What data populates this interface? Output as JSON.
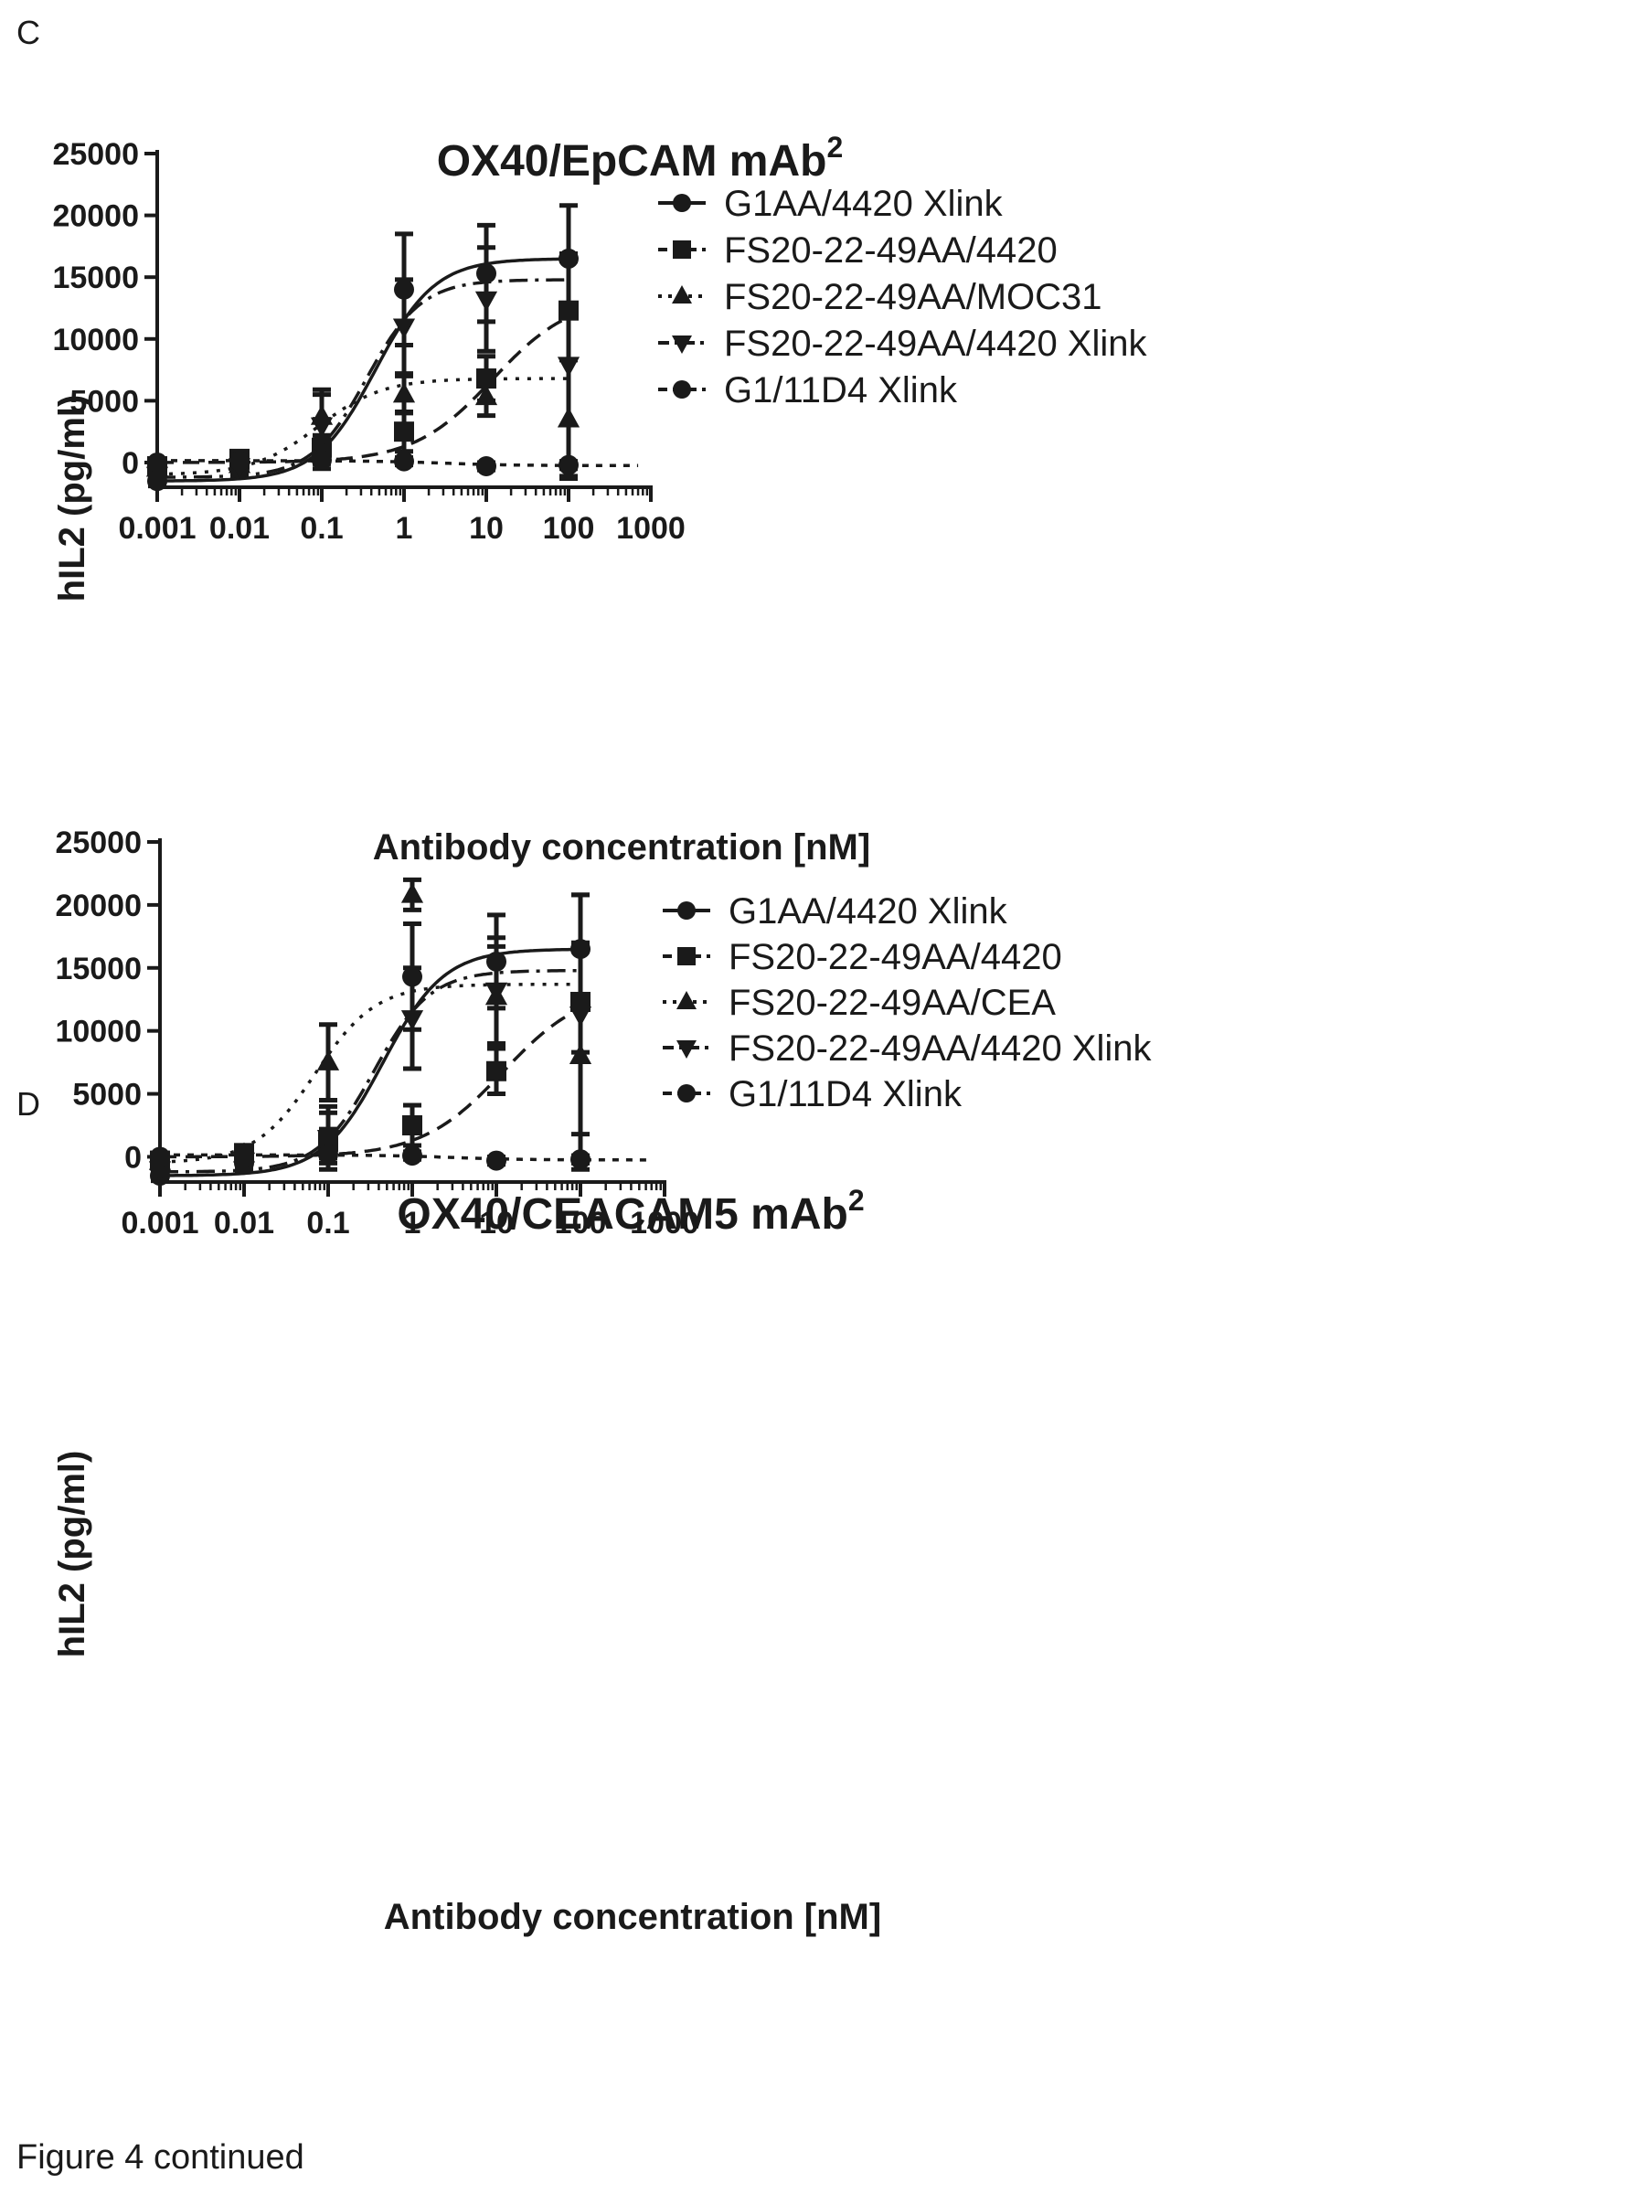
{
  "caption": "Figure 4 continued",
  "chart_data": [
    {
      "panel": "C",
      "type": "line",
      "title": "OX40/EpCAM mAb",
      "title_sup": "2",
      "xlabel": "Antibody concentration [nM]",
      "ylabel": "hIL2 (pg/ml)",
      "x_scale": "log",
      "xlim": [
        0.001,
        1000
      ],
      "ylim": [
        -2000,
        25000
      ],
      "x_ticks": [
        0.001,
        0.01,
        0.1,
        1,
        10,
        100,
        1000
      ],
      "x_tick_labels": [
        "0.001",
        "0.01",
        "0.1",
        "1",
        "10",
        "100",
        "1000"
      ],
      "y_ticks": [
        0,
        5000,
        10000,
        15000,
        20000,
        25000
      ],
      "y_tick_labels": [
        "0",
        "5000",
        "10000",
        "15000",
        "20000",
        "25000"
      ],
      "grid": false,
      "legend_position": "right",
      "series": [
        {
          "name": "G1AA/4420 Xlink",
          "marker": "circle",
          "line_style": "solid",
          "points": [
            {
              "x": 0.001,
              "y": -1500,
              "err": 400
            },
            {
              "x": 0.01,
              "y": -500,
              "err": 600
            },
            {
              "x": 0.1,
              "y": 1500,
              "err": 2000
            },
            {
              "x": 1,
              "y": 14000,
              "err": 4500
            },
            {
              "x": 10,
              "y": 15300,
              "err": 3900
            },
            {
              "x": 100,
              "y": 16500,
              "err": 4300
            }
          ],
          "curve": {
            "bottom": -1500,
            "top": 16500,
            "ec50": 0.45,
            "hill": 1.2
          }
        },
        {
          "name": "FS20-22-49AA/4420",
          "marker": "square",
          "line_style": "dash",
          "points": [
            {
              "x": 0.001,
              "y": -300,
              "err": 400
            },
            {
              "x": 0.01,
              "y": 300,
              "err": 500
            },
            {
              "x": 0.1,
              "y": 1200,
              "err": 1000
            },
            {
              "x": 1,
              "y": 2500,
              "err": 1600
            },
            {
              "x": 10,
              "y": 6800,
              "err": 1800
            },
            {
              "x": 100,
              "y": 12300,
              "err": 4000
            }
          ],
          "curve": {
            "bottom": 0,
            "top": 13500,
            "ec50": 12,
            "hill": 0.9
          }
        },
        {
          "name": "FS20-22-49AA/MOC31",
          "marker": "triangle-up",
          "line_style": "dot",
          "points": [
            {
              "x": 0.001,
              "y": -500,
              "err": 400
            },
            {
              "x": 0.01,
              "y": -200,
              "err": 500
            },
            {
              "x": 0.1,
              "y": 3700,
              "err": 2200
            },
            {
              "x": 1,
              "y": 5500,
              "err": 1500
            },
            {
              "x": 10,
              "y": 5300,
              "err": 1500
            },
            {
              "x": 100,
              "y": 3500,
              "err": 4800
            }
          ],
          "curve": {
            "bottom": -1000,
            "top": 6800,
            "ec50": 0.09,
            "hill": 1.1
          }
        },
        {
          "name": "FS20-22-49AA/4420 Xlink",
          "marker": "triangle-down",
          "line_style": "dashdot",
          "points": [
            {
              "x": 0.001,
              "y": -1000,
              "err": 500
            },
            {
              "x": 0.01,
              "y": -300,
              "err": 600
            },
            {
              "x": 0.1,
              "y": 3000,
              "err": 2500
            },
            {
              "x": 1,
              "y": 11000,
              "err": 3800
            },
            {
              "x": 10,
              "y": 13200,
              "err": 4200
            },
            {
              "x": 100,
              "y": 7900,
              "err": 9000
            }
          ],
          "curve": {
            "bottom": -1200,
            "top": 14800,
            "ec50": 0.35,
            "hill": 1.3
          }
        },
        {
          "name": "G1/11D4 Xlink",
          "marker": "circle",
          "line_style": "shortdash",
          "points": [
            {
              "x": 0.001,
              "y": 0,
              "err": 300
            },
            {
              "x": 0.01,
              "y": 100,
              "err": 300
            },
            {
              "x": 0.1,
              "y": 200,
              "err": 300
            },
            {
              "x": 1,
              "y": 100,
              "err": 300
            },
            {
              "x": 10,
              "y": -300,
              "err": 300
            },
            {
              "x": 100,
              "y": -200,
              "err": 300
            }
          ],
          "curve": {
            "bottom": 150,
            "top": -250,
            "ec50": 3,
            "hill": 1
          }
        }
      ]
    },
    {
      "panel": "D",
      "type": "line",
      "title": "OX40/CEACAM5 mAb",
      "title_sup": "2",
      "xlabel": "Antibody concentration [nM]",
      "ylabel": "hIL2 (pg/ml)",
      "x_scale": "log",
      "xlim": [
        0.001,
        1000
      ],
      "ylim": [
        -2000,
        25000
      ],
      "x_ticks": [
        0.001,
        0.01,
        0.1,
        1,
        10,
        100,
        1000
      ],
      "x_tick_labels": [
        "0.001",
        "0.01",
        "0.1",
        "1",
        "10",
        "100",
        "1000"
      ],
      "y_ticks": [
        0,
        5000,
        10000,
        15000,
        20000,
        25000
      ],
      "y_tick_labels": [
        "0",
        "5000",
        "10000",
        "15000",
        "20000",
        "25000"
      ],
      "grid": false,
      "legend_position": "right",
      "series": [
        {
          "name": "G1AA/4420 Xlink",
          "marker": "circle",
          "line_style": "solid",
          "points": [
            {
              "x": 0.001,
              "y": -1500,
              "err": 400
            },
            {
              "x": 0.01,
              "y": -500,
              "err": 600
            },
            {
              "x": 0.1,
              "y": 1500,
              "err": 2000
            },
            {
              "x": 1,
              "y": 14300,
              "err": 4200
            },
            {
              "x": 10,
              "y": 15500,
              "err": 3700
            },
            {
              "x": 100,
              "y": 16500,
              "err": 4300
            }
          ],
          "curve": {
            "bottom": -1500,
            "top": 16500,
            "ec50": 0.45,
            "hill": 1.2
          }
        },
        {
          "name": "FS20-22-49AA/4420",
          "marker": "square",
          "line_style": "dash",
          "points": [
            {
              "x": 0.001,
              "y": -300,
              "err": 400
            },
            {
              "x": 0.01,
              "y": 300,
              "err": 500
            },
            {
              "x": 0.1,
              "y": 1200,
              "err": 1000
            },
            {
              "x": 1,
              "y": 2500,
              "err": 1600
            },
            {
              "x": 10,
              "y": 6800,
              "err": 1800
            },
            {
              "x": 100,
              "y": 12300,
              "err": 4000
            }
          ],
          "curve": {
            "bottom": 0,
            "top": 13500,
            "ec50": 12,
            "hill": 0.9
          }
        },
        {
          "name": "FS20-22-49AA/CEA",
          "marker": "triangle-up",
          "line_style": "dot",
          "points": [
            {
              "x": 0.001,
              "y": -400,
              "err": 400
            },
            {
              "x": 0.01,
              "y": 200,
              "err": 500
            },
            {
              "x": 0.1,
              "y": 7500,
              "err": 3000
            },
            {
              "x": 1,
              "y": 20800,
              "err": 1200
            },
            {
              "x": 10,
              "y": 12700,
              "err": 4000
            },
            {
              "x": 100,
              "y": 8000,
              "err": 9000
            }
          ],
          "curve": {
            "bottom": -500,
            "top": 13700,
            "ec50": 0.07,
            "hill": 1.2
          }
        },
        {
          "name": "FS20-22-49AA/4420 Xlink",
          "marker": "triangle-down",
          "line_style": "dashdot",
          "points": [
            {
              "x": 0.001,
              "y": -1000,
              "err": 500
            },
            {
              "x": 0.01,
              "y": -300,
              "err": 600
            },
            {
              "x": 0.1,
              "y": 1500,
              "err": 2500
            },
            {
              "x": 1,
              "y": 11000,
              "err": 4000
            },
            {
              "x": 10,
              "y": 13200,
              "err": 4200
            },
            {
              "x": 100,
              "y": 11300,
              "err": 9500
            }
          ],
          "curve": {
            "bottom": -1200,
            "top": 14800,
            "ec50": 0.35,
            "hill": 1.3
          }
        },
        {
          "name": "G1/11D4 Xlink",
          "marker": "circle",
          "line_style": "shortdash",
          "points": [
            {
              "x": 0.001,
              "y": 0,
              "err": 300
            },
            {
              "x": 0.01,
              "y": 100,
              "err": 300
            },
            {
              "x": 0.1,
              "y": 200,
              "err": 300
            },
            {
              "x": 1,
              "y": 100,
              "err": 300
            },
            {
              "x": 10,
              "y": -300,
              "err": 300
            },
            {
              "x": 100,
              "y": -200,
              "err": 300
            }
          ],
          "curve": {
            "bottom": 150,
            "top": -250,
            "ec50": 3,
            "hill": 1
          }
        }
      ]
    }
  ]
}
